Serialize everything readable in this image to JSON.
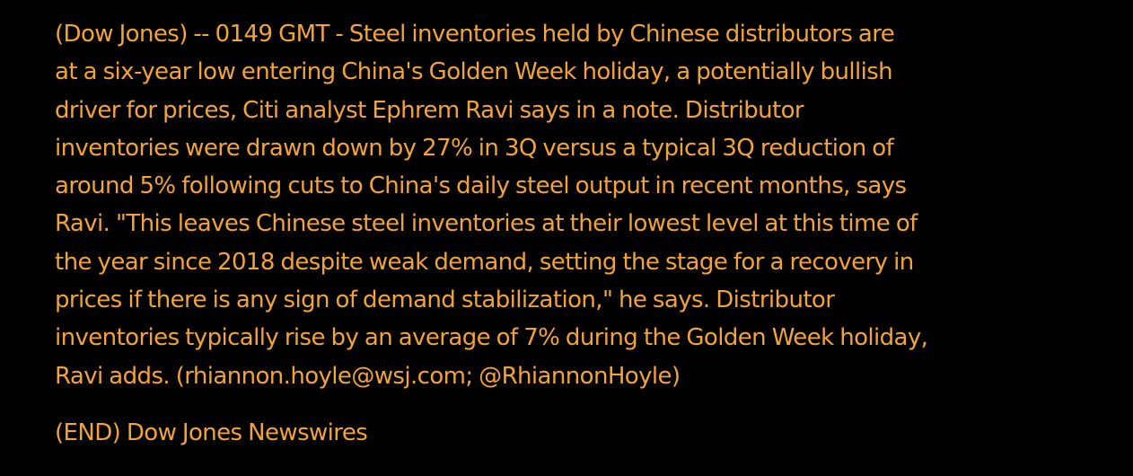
{
  "colors": {
    "background": "#000000",
    "text": "#f2a33a"
  },
  "story": {
    "lines": [
      "(Dow Jones) -- 0149 GMT - Steel inventories held by Chinese distributors are",
      "at a six-year low entering China's Golden Week holiday, a potentially bullish",
      "driver for prices, Citi analyst Ephrem Ravi says in a note. Distributor",
      "inventories were drawn down by 27% in 3Q versus a typical 3Q reduction of",
      "around 5% following cuts to China's daily steel output in recent months, says",
      "Ravi. \"This leaves Chinese steel inventories at their lowest level at this time of",
      "the year since 2018 despite weak demand, setting the stage for a recovery in",
      "prices if there is any sign of demand stabilization,\" he says. Distributor",
      "inventories typically rise by an average of 7% during the Golden Week holiday,",
      "Ravi adds. (rhiannon.hoyle@wsj.com; @RhiannonHoyle)"
    ],
    "footer": "(END) Dow Jones Newswires"
  }
}
